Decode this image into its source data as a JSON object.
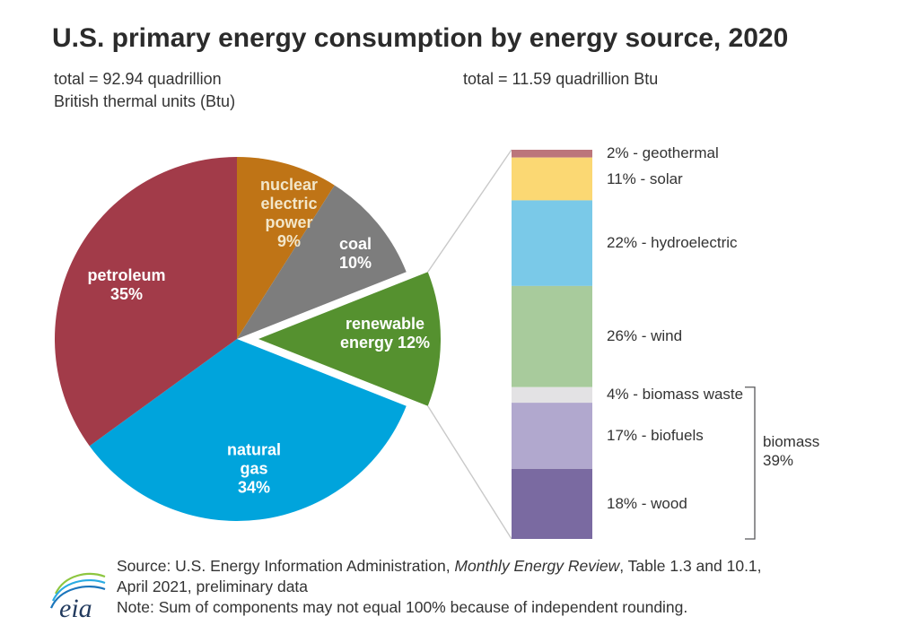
{
  "header": {
    "title": "U.S. primary energy consumption by energy source, 2020"
  },
  "chart_data": [
    {
      "type": "pie",
      "name": "energy-consumption-by-source",
      "total_label": "total = 92.94 quadrillion\nBritish thermal units (Btu)",
      "total_quadrillion_btu": 92.94,
      "start_angle_deg": 0,
      "direction": "clockwise",
      "slices": [
        {
          "label": "nuclear electric power",
          "pct": 9,
          "color": "#bf7416",
          "text_color": "#f2e6c9",
          "text_lines": [
            "nuclear",
            "electric",
            "power",
            "9%"
          ],
          "exploded": false
        },
        {
          "label": "coal",
          "pct": 10,
          "color": "#7d7d7d",
          "text_color": "#ffffff",
          "text_lines": [
            "coal",
            "10%"
          ],
          "exploded": false
        },
        {
          "label": "renewable energy",
          "pct": 12,
          "color": "#55912f",
          "text_color": "#ffffff",
          "text_lines": [
            "renewable",
            "energy 12%"
          ],
          "exploded": true
        },
        {
          "label": "natural gas",
          "pct": 34,
          "color": "#00a4dc",
          "text_color": "#ffffff",
          "text_lines": [
            "natural",
            "gas",
            "34%"
          ],
          "exploded": false
        },
        {
          "label": "petroleum",
          "pct": 35,
          "color": "#a23b49",
          "text_color": "#ffffff",
          "text_lines": [
            "petroleum",
            "35%"
          ],
          "exploded": false
        }
      ]
    },
    {
      "type": "stacked-bar",
      "name": "renewable-energy-breakdown",
      "total_label": "total = 11.59 quadrillion Btu",
      "total_quadrillion_btu": 11.59,
      "segments": [
        {
          "label": "geothermal",
          "pct": 2,
          "color": "#bc767b",
          "caption": "2% - geothermal"
        },
        {
          "label": "solar",
          "pct": 11,
          "color": "#fbd873",
          "caption": "11% - solar"
        },
        {
          "label": "hydroelectric",
          "pct": 22,
          "color": "#7ac9e8",
          "caption": "22% - hydroelectric"
        },
        {
          "label": "wind",
          "pct": 26,
          "color": "#a8cb9c",
          "caption": "26% - wind"
        },
        {
          "label": "biomass waste",
          "pct": 4,
          "color": "#e3e2e4",
          "caption": "4% - biomass waste"
        },
        {
          "label": "biofuels",
          "pct": 17,
          "color": "#b1a8ce",
          "caption": "17% - biofuels"
        },
        {
          "label": "wood",
          "pct": 18,
          "color": "#7a6aa1",
          "caption": "18% - wood"
        }
      ],
      "bracket": {
        "label_lines": [
          "biomass",
          "39%"
        ],
        "pct": 39,
        "covers": [
          "biomass waste",
          "biofuels",
          "wood"
        ]
      }
    }
  ],
  "footer": {
    "source_prefix": "Source: U.S. Energy Information Administration, ",
    "source_italic": "Monthly Energy Review",
    "source_suffix": ", Table 1.3 and 10.1,",
    "source_line2": "April 2021, preliminary data",
    "note": "Note: Sum of components may not equal 100% because of independent rounding.",
    "logo_text": "eia"
  },
  "colors": {
    "connector_line": "#c9c9c9",
    "bracket": "#58585a",
    "text": "#333333",
    "title": "#2b2b2b"
  }
}
